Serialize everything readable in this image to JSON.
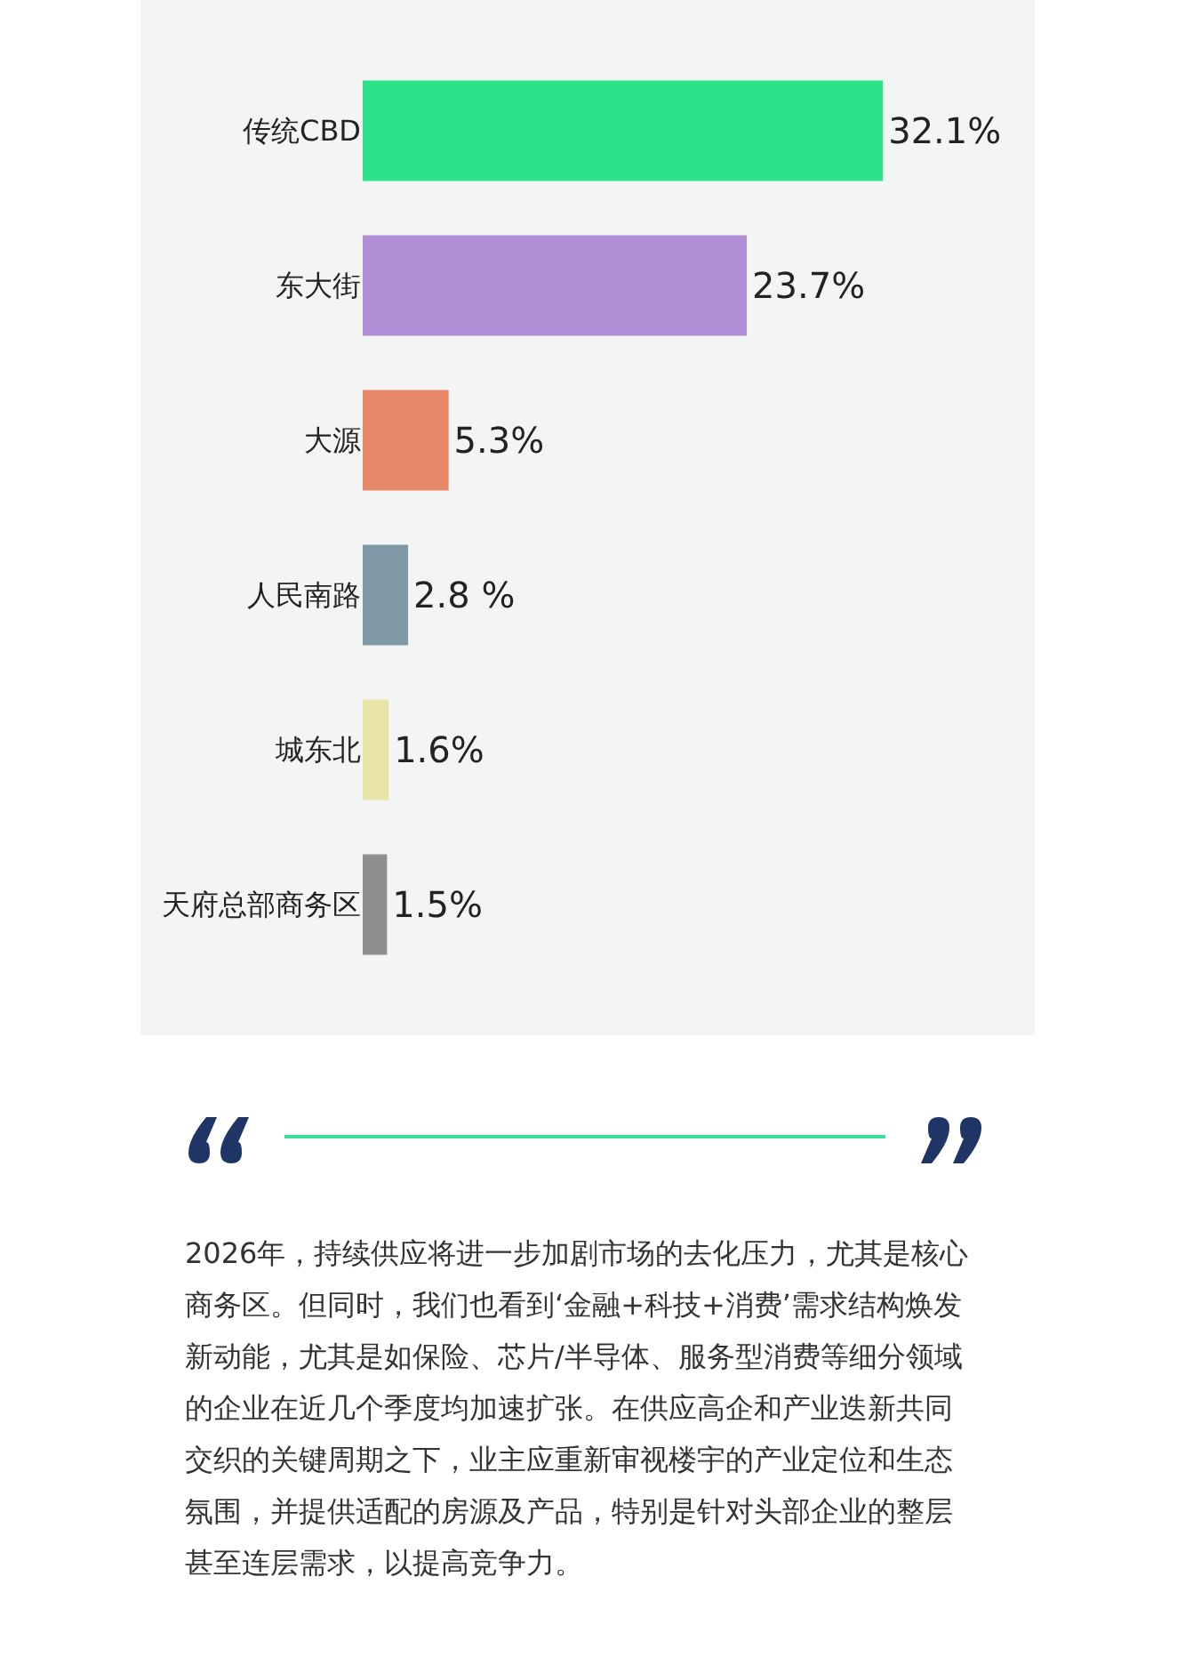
{
  "chart_data": {
    "type": "bar",
    "orientation": "horizontal",
    "categories": [
      "传统CBD",
      "东大街",
      "大源",
      "人民南路",
      "城东北",
      "天府总部商务区"
    ],
    "values": [
      32.1,
      23.7,
      5.3,
      2.8,
      1.6,
      1.5
    ],
    "value_labels": [
      "32.1%",
      "23.7%",
      "5.3%",
      "2.8 %",
      "1.6%",
      "1.5%"
    ],
    "colors": [
      "#2de38a",
      "#b08fd6",
      "#e8896a",
      "#7f98a6",
      "#e8e4a8",
      "#8e8e8e"
    ],
    "grid": false,
    "annotations": [
      "2026年，持续供应将进一步加剧市场的去化压力，尤其是核心商务区。但同时，我们也看到‘金融+科技+消费’需求结构焕发新动能，尤其是如保险、芯片/半导体、服务型消费等细分领域的企业在近几个季度均加速扩张。在供应高企和产业迭新共同交织的关键周期之下，业主应重新审视楼宇的产业定位和生态氛围，并提供适配的房源及产品，特别是针对头部企业的整层甚至连层需求，以提高竞争力。"
    ]
  }
}
